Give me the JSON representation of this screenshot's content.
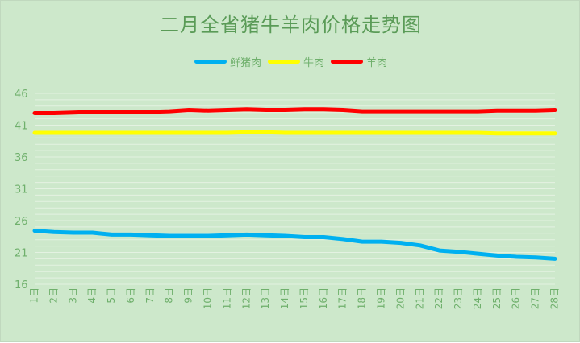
{
  "colors": {
    "background": "#cde8cb",
    "gridline": "#e4f2e2",
    "text": "#6fb06c",
    "title": "#5a9b57"
  },
  "chart_data": {
    "type": "line",
    "title": "二月全省猪牛羊肉价格走势图",
    "categories": [
      "1日",
      "2日",
      "3日",
      "4日",
      "5日",
      "6日",
      "7日",
      "8日",
      "9日",
      "10日",
      "11日",
      "12日",
      "13日",
      "14日",
      "15日",
      "16日",
      "17日",
      "18日",
      "19日",
      "20日",
      "21日",
      "22日",
      "23日",
      "24日",
      "25日",
      "26日",
      "27日",
      "28日"
    ],
    "ylim": [
      16,
      46
    ],
    "yticks": [
      16,
      21,
      26,
      31,
      36,
      41,
      46
    ],
    "grid": true,
    "legend_position": "top",
    "series": [
      {
        "name": "鲜猪肉",
        "color": "#00b0f0",
        "values": [
          24.4,
          24.2,
          24.1,
          24.1,
          23.8,
          23.8,
          23.7,
          23.6,
          23.6,
          23.6,
          23.7,
          23.8,
          23.7,
          23.6,
          23.4,
          23.4,
          23.1,
          22.7,
          22.7,
          22.5,
          22.1,
          21.3,
          21.1,
          20.8,
          20.5,
          20.3,
          20.2,
          20.0
        ]
      },
      {
        "name": "牛肉",
        "color": "#ffff00",
        "values": [
          39.8,
          39.8,
          39.8,
          39.8,
          39.8,
          39.8,
          39.8,
          39.8,
          39.8,
          39.8,
          39.8,
          39.9,
          39.9,
          39.8,
          39.8,
          39.8,
          39.8,
          39.8,
          39.8,
          39.8,
          39.8,
          39.8,
          39.8,
          39.8,
          39.7,
          39.7,
          39.7,
          39.7
        ]
      },
      {
        "name": "羊肉",
        "color": "#ff0000",
        "values": [
          42.9,
          42.9,
          43.0,
          43.1,
          43.1,
          43.1,
          43.1,
          43.2,
          43.4,
          43.3,
          43.4,
          43.5,
          43.4,
          43.4,
          43.5,
          43.5,
          43.4,
          43.2,
          43.2,
          43.2,
          43.2,
          43.2,
          43.2,
          43.2,
          43.3,
          43.3,
          43.3,
          43.4
        ]
      }
    ]
  }
}
